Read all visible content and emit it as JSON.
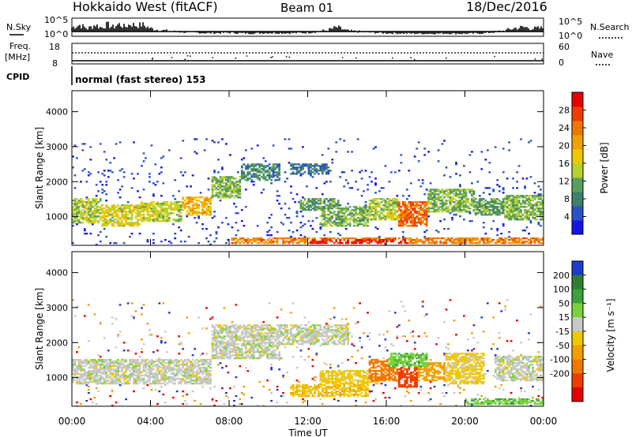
{
  "header": {
    "title": "Hokkaido West (fitACF)",
    "beam": "Beam 01",
    "date": "18/Dec/2016"
  },
  "nsky_panel": {
    "left_label": "N.Sky",
    "left_ticks": [
      "10^5",
      "10^0"
    ],
    "right_ticks": [
      "10^5",
      "10^0"
    ],
    "right_label": "N.Search",
    "right_legend_line": "dotted"
  },
  "freq_panel": {
    "left_label_1": "Freq.",
    "left_label_2": "[MHz]",
    "left_ticks": [
      "18",
      "8"
    ],
    "right_ticks": [
      "60",
      "0"
    ],
    "right_label": "Nave",
    "right_legend_line": "dotted"
  },
  "cpid": {
    "label": "CPID",
    "mode_text": "normal (fast stereo) 153"
  },
  "x_axis": {
    "label": "Time UT",
    "range_hours": [
      0,
      24
    ],
    "tick_labels": [
      "00:00",
      "04:00",
      "08:00",
      "12:00",
      "16:00",
      "20:00",
      "00:00"
    ],
    "tick_hours": [
      0,
      4,
      8,
      12,
      16,
      20,
      24
    ]
  },
  "y_axis": {
    "label": "Slant Range [km]",
    "range_km": [
      180,
      4600
    ],
    "tick_values": [
      1000,
      2000,
      3000,
      4000
    ],
    "tick_labels": [
      "1000",
      "2000",
      "3000",
      "4000"
    ]
  },
  "power_colorbar": {
    "label": "Power [dB]",
    "tick_labels": [
      "4",
      "8",
      "12",
      "16",
      "20",
      "24",
      "28"
    ],
    "range": [
      0,
      32
    ],
    "colors": [
      "#1414e6",
      "#2a50c8",
      "#3f7f6e",
      "#5a9e5a",
      "#b4d232",
      "#f0c800",
      "#f0a000",
      "#f07800",
      "#f03c00",
      "#e60000"
    ]
  },
  "velocity_colorbar": {
    "label": "Velocity [m s⁻¹]",
    "tick_labels": [
      "200",
      "100",
      "50",
      "15",
      "-15",
      "-50",
      "-100",
      "-200"
    ],
    "colors": [
      "#1e3cc8",
      "#2e7d32",
      "#3ca03c",
      "#78d23c",
      "#c8c8c8",
      "#f0c800",
      "#f0a000",
      "#f07800",
      "#f03c00",
      "#e60000"
    ]
  },
  "chart_data": [
    {
      "type": "area",
      "name": "N.Sky",
      "x_unit": "hours UT",
      "x": [
        0.0,
        0.4,
        0.8,
        1.2,
        1.5,
        1.8,
        2.1,
        2.4,
        2.7,
        3.0,
        3.3,
        3.6,
        4.0,
        4.5,
        5.0,
        6.0,
        7.0,
        8.0,
        9.0,
        10.0,
        11.0,
        12.0,
        13.0,
        13.5,
        14.0,
        15.0,
        16.0,
        17.0,
        18.0,
        19.0,
        20.0,
        21.0,
        22.0,
        22.5,
        23.0,
        23.5,
        24.0
      ],
      "y_log10": [
        3.5,
        4.5,
        3.0,
        4.6,
        3.4,
        4.7,
        3.6,
        4.8,
        3.7,
        4.9,
        4.2,
        4.6,
        3.1,
        2.5,
        2.0,
        1.5,
        1.2,
        1.4,
        1.1,
        1.3,
        1.2,
        1.4,
        2.4,
        3.6,
        2.2,
        1.6,
        1.2,
        1.1,
        1.0,
        1.1,
        1.0,
        1.2,
        2.2,
        3.2,
        3.6,
        3.1,
        3.3
      ],
      "ylim_log10": [
        0,
        5
      ]
    },
    {
      "type": "line",
      "name": "Freq",
      "x_unit": "hours UT",
      "x": [
        0,
        24
      ],
      "y_mhz": [
        9.5,
        9.5
      ],
      "ylim": [
        8,
        18
      ]
    },
    {
      "type": "line",
      "name": "Nave",
      "x_unit": "hours UT",
      "x": [
        0,
        24
      ],
      "y": [
        34,
        34
      ],
      "ylim": [
        0,
        60
      ]
    },
    {
      "type": "heatmap",
      "name": "Power",
      "x_unit": "hours UT",
      "y_unit": "km",
      "value_unit": "dB",
      "xlim": [
        0,
        24
      ],
      "ylim": [
        180,
        4600
      ],
      "regions": [
        {
          "x": [
            0.0,
            1.5
          ],
          "y": [
            800,
            1500
          ],
          "value": 14
        },
        {
          "x": [
            1.5,
            3.5
          ],
          "y": [
            720,
            1320
          ],
          "value": 16
        },
        {
          "x": [
            3.5,
            5.5
          ],
          "y": [
            820,
            1400
          ],
          "value": 15
        },
        {
          "x": [
            5.5,
            7.0
          ],
          "y": [
            1000,
            1550
          ],
          "value": 20
        },
        {
          "x": [
            7.0,
            8.5
          ],
          "y": [
            1500,
            2150
          ],
          "value": 12
        },
        {
          "x": [
            8.5,
            10.5
          ],
          "y": [
            2000,
            2500
          ],
          "value": 8
        },
        {
          "x": [
            11.0,
            13.0
          ],
          "y": [
            2200,
            2500
          ],
          "value": 6
        },
        {
          "x": [
            11.5,
            13.5
          ],
          "y": [
            1150,
            1500
          ],
          "value": 10
        },
        {
          "x": [
            12.5,
            15.0
          ],
          "y": [
            700,
            1300
          ],
          "value": 12
        },
        {
          "x": [
            15.0,
            16.5
          ],
          "y": [
            900,
            1500
          ],
          "value": 14
        },
        {
          "x": [
            16.5,
            18.0
          ],
          "y": [
            700,
            1400
          ],
          "value": 26
        },
        {
          "x": [
            18.0,
            20.5
          ],
          "y": [
            1100,
            1800
          ],
          "value": 12
        },
        {
          "x": [
            20.5,
            22.0
          ],
          "y": [
            1000,
            1500
          ],
          "value": 10
        },
        {
          "x": [
            22.0,
            24.0
          ],
          "y": [
            900,
            1600
          ],
          "value": 12
        },
        {
          "x": [
            8.0,
            24.0
          ],
          "y": [
            220,
            400
          ],
          "value": 24
        },
        {
          "x": [
            12.0,
            17.0
          ],
          "y": [
            200,
            360
          ],
          "value": 30
        }
      ],
      "sparse_echo_y_max_km": 3200
    },
    {
      "type": "heatmap",
      "name": "Velocity",
      "x_unit": "hours UT",
      "y_unit": "km",
      "value_unit": "m/s",
      "xlim": [
        0,
        24
      ],
      "ylim": [
        180,
        4600
      ],
      "regions": [
        {
          "x": [
            0.0,
            7.0
          ],
          "y": [
            800,
            1500
          ],
          "value": 0
        },
        {
          "x": [
            7.0,
            10.5
          ],
          "y": [
            1500,
            2500
          ],
          "value": 0
        },
        {
          "x": [
            10.5,
            14.0
          ],
          "y": [
            1900,
            2500
          ],
          "value": 0
        },
        {
          "x": [
            11.0,
            15.0
          ],
          "y": [
            450,
            800
          ],
          "value": -40
        },
        {
          "x": [
            12.5,
            15.5
          ],
          "y": [
            800,
            1200
          ],
          "value": -30
        },
        {
          "x": [
            15.0,
            16.5
          ],
          "y": [
            900,
            1500
          ],
          "value": -120
        },
        {
          "x": [
            16.5,
            17.5
          ],
          "y": [
            700,
            1500
          ],
          "value": -250
        },
        {
          "x": [
            17.5,
            19.0
          ],
          "y": [
            900,
            1400
          ],
          "value": -70
        },
        {
          "x": [
            19.0,
            21.0
          ],
          "y": [
            800,
            1700
          ],
          "value": -25
        },
        {
          "x": [
            21.5,
            24.0
          ],
          "y": [
            900,
            1600
          ],
          "value": 0
        },
        {
          "x": [
            16.0,
            18.0
          ],
          "y": [
            1300,
            1700
          ],
          "value": 40
        },
        {
          "x": [
            20.0,
            24.0
          ],
          "y": [
            200,
            400
          ],
          "value": 40
        }
      ],
      "sparse_echo_y_max_km": 3200
    }
  ]
}
